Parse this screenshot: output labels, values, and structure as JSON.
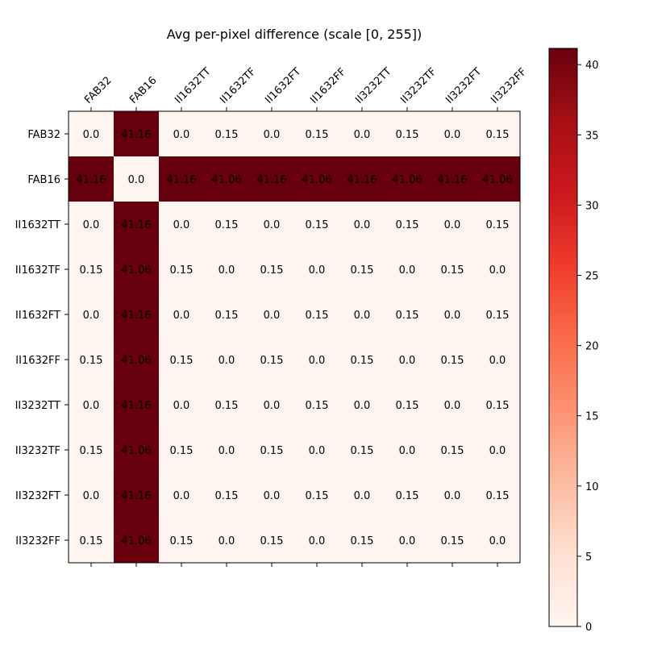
{
  "chart_data": {
    "type": "heatmap",
    "title": "Avg per-pixel difference (scale [0, 255])",
    "xlabel": "",
    "ylabel": "",
    "x_categories": [
      "FAB32",
      "FAB16",
      "II1632TT",
      "II1632TF",
      "II1632FT",
      "II1632FF",
      "II3232TT",
      "II3232TF",
      "II3232FT",
      "II3232FF"
    ],
    "y_categories": [
      "FAB32",
      "FAB16",
      "II1632TT",
      "II1632TF",
      "II1632FT",
      "II1632FF",
      "II3232TT",
      "II3232TF",
      "II3232FT",
      "II3232FF"
    ],
    "values": [
      [
        0.0,
        41.16,
        0.0,
        0.15,
        0.0,
        0.15,
        0.0,
        0.15,
        0.0,
        0.15
      ],
      [
        41.16,
        0.0,
        41.16,
        41.06,
        41.16,
        41.06,
        41.16,
        41.06,
        41.16,
        41.06
      ],
      [
        0.0,
        41.16,
        0.0,
        0.15,
        0.0,
        0.15,
        0.0,
        0.15,
        0.0,
        0.15
      ],
      [
        0.15,
        41.06,
        0.15,
        0.0,
        0.15,
        0.0,
        0.15,
        0.0,
        0.15,
        0.0
      ],
      [
        0.0,
        41.16,
        0.0,
        0.15,
        0.0,
        0.15,
        0.0,
        0.15,
        0.0,
        0.15
      ],
      [
        0.15,
        41.06,
        0.15,
        0.0,
        0.15,
        0.0,
        0.15,
        0.0,
        0.15,
        0.0
      ],
      [
        0.0,
        41.16,
        0.0,
        0.15,
        0.0,
        0.15,
        0.0,
        0.15,
        0.0,
        0.15
      ],
      [
        0.15,
        41.06,
        0.15,
        0.0,
        0.15,
        0.0,
        0.15,
        0.0,
        0.15,
        0.0
      ],
      [
        0.0,
        41.16,
        0.0,
        0.15,
        0.0,
        0.15,
        0.0,
        0.15,
        0.0,
        0.15
      ],
      [
        0.15,
        41.06,
        0.15,
        0.0,
        0.15,
        0.0,
        0.15,
        0.0,
        0.15,
        0.0
      ]
    ],
    "cell_labels": [
      [
        "0.0",
        "41.16",
        "0.0",
        "0.15",
        "0.0",
        "0.15",
        "0.0",
        "0.15",
        "0.0",
        "0.15"
      ],
      [
        "41.16",
        "0.0",
        "41.16",
        "41.06",
        "41.16",
        "41.06",
        "41.16",
        "41.06",
        "41.16",
        "41.06"
      ],
      [
        "0.0",
        "41.16",
        "0.0",
        "0.15",
        "0.0",
        "0.15",
        "0.0",
        "0.15",
        "0.0",
        "0.15"
      ],
      [
        "0.15",
        "41.06",
        "0.15",
        "0.0",
        "0.15",
        "0.0",
        "0.15",
        "0.0",
        "0.15",
        "0.0"
      ],
      [
        "0.0",
        "41.16",
        "0.0",
        "0.15",
        "0.0",
        "0.15",
        "0.0",
        "0.15",
        "0.0",
        "0.15"
      ],
      [
        "0.15",
        "41.06",
        "0.15",
        "0.0",
        "0.15",
        "0.0",
        "0.15",
        "0.0",
        "0.15",
        "0.0"
      ],
      [
        "0.0",
        "41.16",
        "0.0",
        "0.15",
        "0.0",
        "0.15",
        "0.0",
        "0.15",
        "0.0",
        "0.15"
      ],
      [
        "0.15",
        "41.06",
        "0.15",
        "0.0",
        "0.15",
        "0.0",
        "0.15",
        "0.0",
        "0.15",
        "0.0"
      ],
      [
        "0.0",
        "41.16",
        "0.0",
        "0.15",
        "0.0",
        "0.15",
        "0.0",
        "0.15",
        "0.0",
        "0.15"
      ],
      [
        "0.15",
        "41.06",
        "0.15",
        "0.0",
        "0.15",
        "0.0",
        "0.15",
        "0.0",
        "0.15",
        "0.0"
      ]
    ],
    "colormap": "Reds",
    "colors": {
      "low": "#fff5f0",
      "high": "#67000d",
      "stops": [
        "#fff5f0",
        "#fee0d2",
        "#fcbba1",
        "#fc9272",
        "#fb6a4a",
        "#ef3b2c",
        "#cb181d",
        "#a50f15",
        "#67000d"
      ]
    },
    "vmin": 0,
    "vmax": 41.16,
    "colorbar": {
      "ticks": [
        0,
        5,
        10,
        15,
        20,
        25,
        30,
        35,
        40
      ],
      "tick_labels": [
        "0",
        "5",
        "10",
        "15",
        "20",
        "25",
        "30",
        "35",
        "40"
      ]
    },
    "x_tick_position": "top",
    "grid": false
  }
}
